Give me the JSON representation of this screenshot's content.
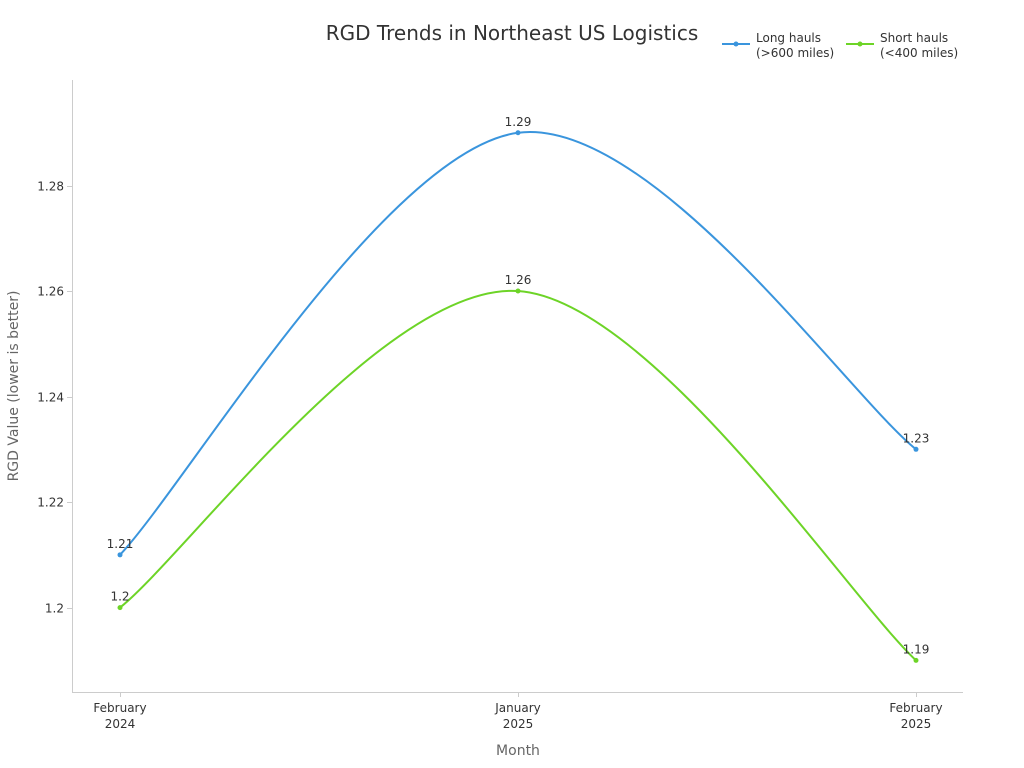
{
  "chart_data": {
    "type": "line",
    "title": "RGD Trends in Northeast US Logistics",
    "xlabel": "Month",
    "ylabel": "RGD Value (lower is better)",
    "categories": [
      [
        "February",
        "2024"
      ],
      [
        "January",
        "2025"
      ],
      [
        "February",
        "2025"
      ]
    ],
    "ylim": [
      1.184,
      1.3
    ],
    "yticks": [
      1.2,
      1.22,
      1.24,
      1.26,
      1.28
    ],
    "ytick_labels": [
      "1.2",
      "1.22",
      "1.24",
      "1.26",
      "1.28"
    ],
    "series": [
      {
        "name": "Long hauls (>600 miles)",
        "legend_lines": [
          "Long hauls",
          "(>600 miles)"
        ],
        "color": "#3a95dd",
        "values": [
          1.21,
          1.29,
          1.23
        ],
        "labels": [
          "1.21",
          "1.29",
          "1.23"
        ]
      },
      {
        "name": "Short hauls (<400 miles)",
        "legend_lines": [
          "Short hauls",
          "(<400 miles)"
        ],
        "color": "#6dd427",
        "values": [
          1.2,
          1.26,
          1.19
        ],
        "labels": [
          "1.2",
          "1.26",
          "1.19"
        ]
      }
    ],
    "legend_position": "top-right",
    "grid": false
  }
}
